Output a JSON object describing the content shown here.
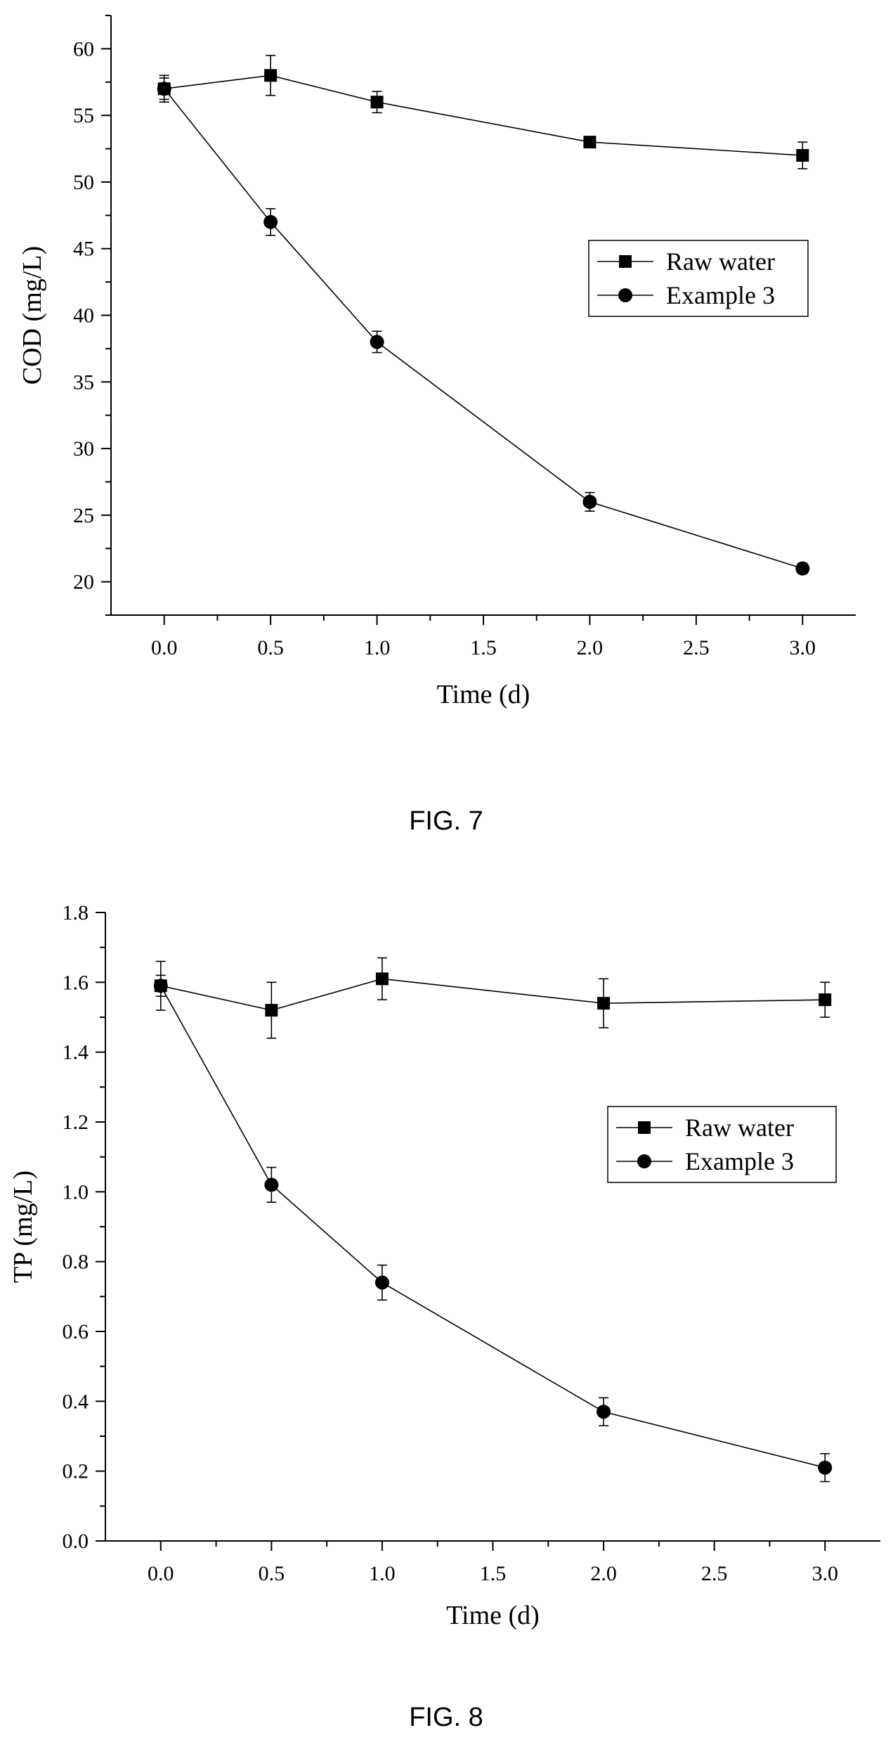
{
  "chart_data": [
    {
      "type": "line",
      "caption": "FIG. 7",
      "xlabel": "Time (d)",
      "ylabel": "COD (mg/L)",
      "xlim": [
        -0.25,
        3.25
      ],
      "ylim": [
        17.5,
        62.5
      ],
      "xticks": [
        "0.0",
        "0.5",
        "1.0",
        "1.5",
        "2.0",
        "2.5",
        "3.0"
      ],
      "yticks": [
        "20",
        "25",
        "30",
        "35",
        "40",
        "45",
        "50",
        "55",
        "60"
      ],
      "legend_position": "right",
      "series": [
        {
          "name": "Raw water",
          "marker": "square",
          "x": [
            0,
            0.5,
            1,
            2,
            3
          ],
          "y": [
            57,
            58,
            56,
            53,
            52
          ],
          "error": [
            1.0,
            1.5,
            0.8,
            0.3,
            1.0
          ]
        },
        {
          "name": "Example 3",
          "marker": "circle",
          "x": [
            0,
            0.5,
            1,
            2,
            3
          ],
          "y": [
            57,
            47,
            38,
            26,
            21
          ],
          "error": [
            0.8,
            1.0,
            0.8,
            0.7,
            0.4
          ]
        }
      ]
    },
    {
      "type": "line",
      "caption": "FIG. 8",
      "xlabel": "Time (d)",
      "ylabel": "TP (mg/L)",
      "xlim": [
        -0.25,
        3.25
      ],
      "ylim": [
        0.0,
        1.8
      ],
      "xticks": [
        "0.0",
        "0.5",
        "1.0",
        "1.5",
        "2.0",
        "2.5",
        "3.0"
      ],
      "yticks": [
        "0.0",
        "0.2",
        "0.4",
        "0.6",
        "0.8",
        "1.0",
        "1.2",
        "1.4",
        "1.6",
        "1.8"
      ],
      "legend_position": "right",
      "series": [
        {
          "name": "Raw water",
          "marker": "square",
          "x": [
            0,
            0.5,
            1,
            2,
            3
          ],
          "y": [
            1.59,
            1.52,
            1.61,
            1.54,
            1.55
          ],
          "error": [
            0.07,
            0.08,
            0.06,
            0.07,
            0.05
          ]
        },
        {
          "name": "Example 3",
          "marker": "circle",
          "x": [
            0,
            0.5,
            1,
            2,
            3
          ],
          "y": [
            1.59,
            1.02,
            0.74,
            0.37,
            0.21
          ],
          "error": [
            0.03,
            0.05,
            0.05,
            0.04,
            0.04
          ]
        }
      ]
    }
  ]
}
